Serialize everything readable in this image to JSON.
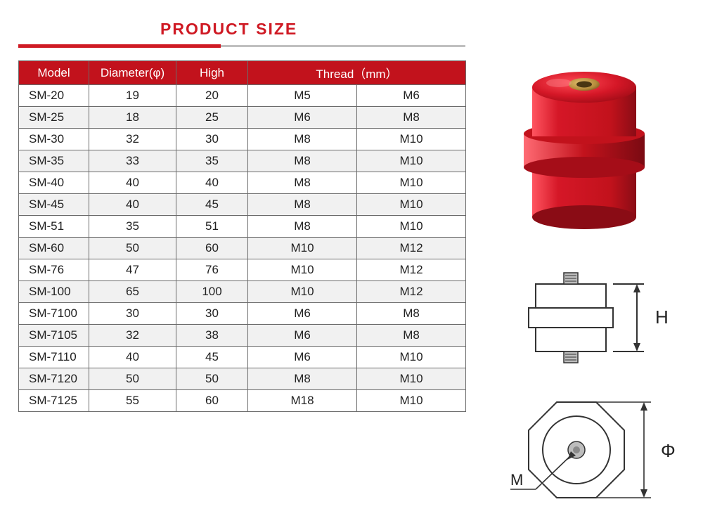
{
  "title": {
    "text": "PRODUCT SIZE",
    "color": "#cf1a24",
    "underline_color": "#cf1a24"
  },
  "table": {
    "header_bg": "#c2121c",
    "header_fg": "#ffffff",
    "alt_row_bg": "#f1f1f1",
    "columns": {
      "model": "Model",
      "diameter": "Diameter(φ)",
      "high": "High",
      "thread": "Thread（mm）"
    },
    "rows": [
      {
        "model": "SM-20",
        "diameter": "19",
        "high": "20",
        "t1": "M5",
        "t2": "M6"
      },
      {
        "model": "SM-25",
        "diameter": "18",
        "high": "25",
        "t1": "M6",
        "t2": "M8"
      },
      {
        "model": "SM-30",
        "diameter": "32",
        "high": "30",
        "t1": "M8",
        "t2": "M10"
      },
      {
        "model": "SM-35",
        "diameter": "33",
        "high": "35",
        "t1": "M8",
        "t2": "M10"
      },
      {
        "model": "SM-40",
        "diameter": "40",
        "high": "40",
        "t1": "M8",
        "t2": "M10"
      },
      {
        "model": "SM-45",
        "diameter": "40",
        "high": "45",
        "t1": "M8",
        "t2": "M10"
      },
      {
        "model": "SM-51",
        "diameter": "35",
        "high": "51",
        "t1": "M8",
        "t2": "M10"
      },
      {
        "model": "SM-60",
        "diameter": "50",
        "high": "60",
        "t1": "M10",
        "t2": "M12"
      },
      {
        "model": "SM-76",
        "diameter": "47",
        "high": "76",
        "t1": "M10",
        "t2": "M12"
      },
      {
        "model": "SM-100",
        "diameter": "65",
        "high": "100",
        "t1": "M10",
        "t2": "M12"
      },
      {
        "model": "SM-7100",
        "diameter": "30",
        "high": "30",
        "t1": "M6",
        "t2": "M8"
      },
      {
        "model": "SM-7105",
        "diameter": "32",
        "high": "38",
        "t1": "M6",
        "t2": "M8"
      },
      {
        "model": "SM-7110",
        "diameter": "40",
        "high": "45",
        "t1": "M6",
        "t2": "M10"
      },
      {
        "model": "SM-7120",
        "diameter": "50",
        "high": "50",
        "t1": "M8",
        "t2": "M10"
      },
      {
        "model": "SM-7125",
        "diameter": "55",
        "high": "60",
        "t1": "M18",
        "t2": "M10"
      }
    ]
  },
  "diagrams": {
    "h_label": "H",
    "phi_label": "Φ",
    "m_label": "M",
    "stroke": "#333333",
    "photo_red": "#d51727",
    "photo_red_dark": "#a50d18",
    "photo_brass": "#b48a3a",
    "photo_brass_dark": "#7a5a1e"
  }
}
